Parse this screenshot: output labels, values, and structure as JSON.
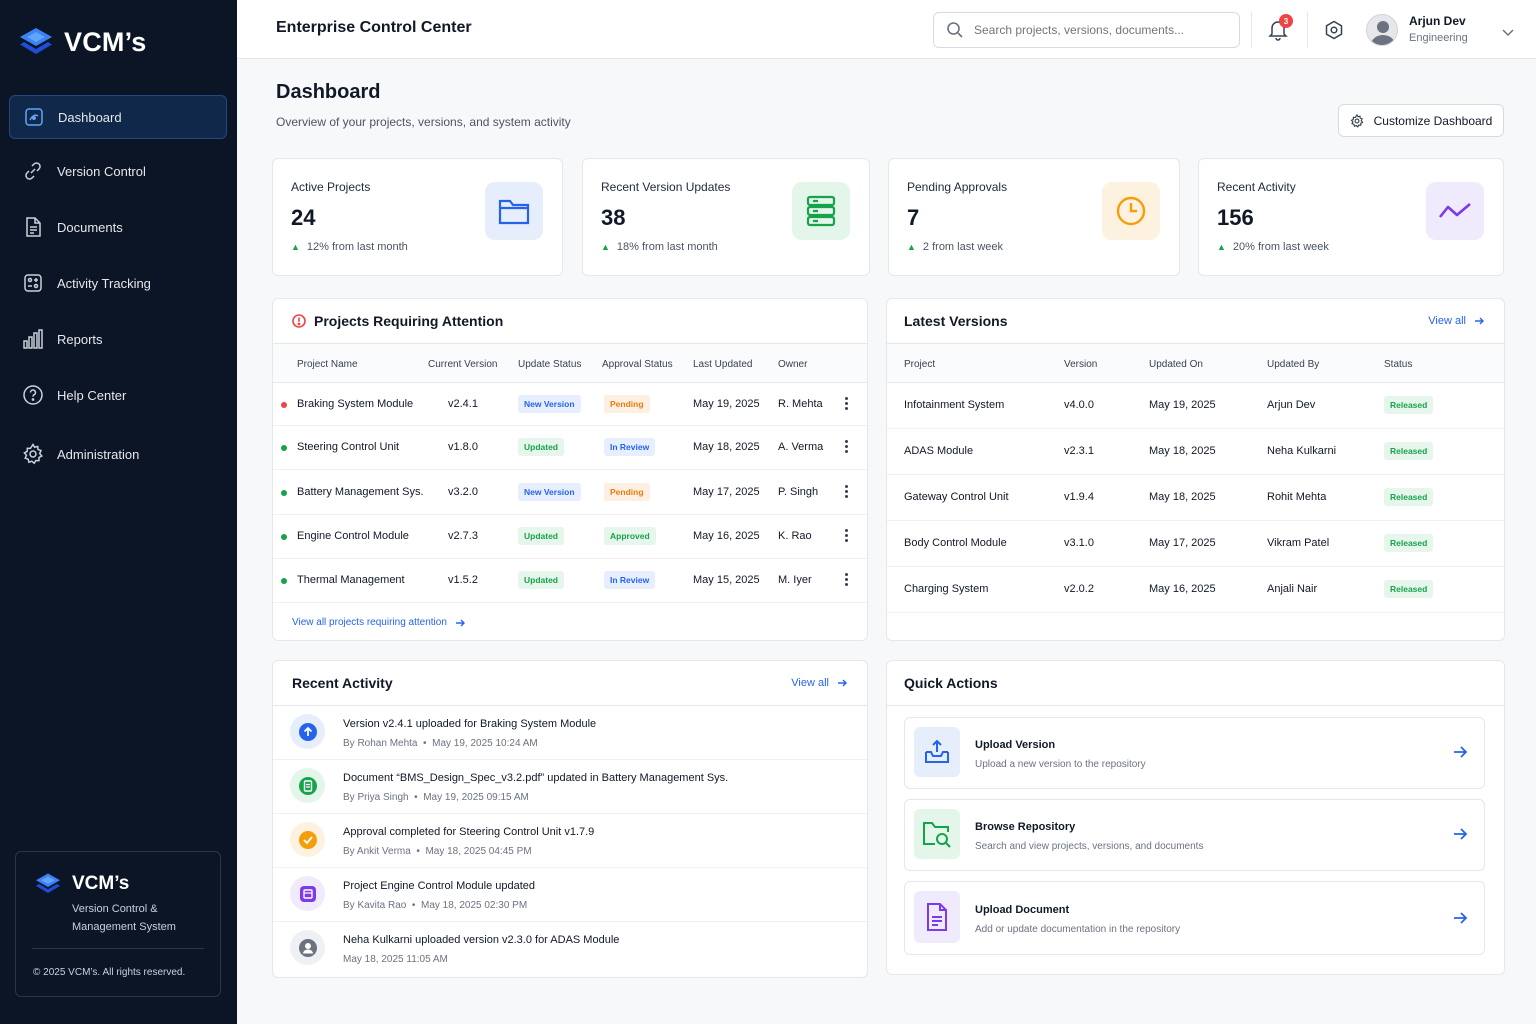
{
  "brand": {
    "name": "VCM’s",
    "tagline": "Version Control & Management System",
    "copyright": "© 2025 VCM’s. All rights reserved."
  },
  "nav": [
    {
      "label": "Dashboard",
      "icon": "dashboard-icon",
      "active": true
    },
    {
      "label": "Version Control",
      "icon": "link-icon"
    },
    {
      "label": "Documents",
      "icon": "document-icon"
    },
    {
      "label": "Activity Tracking",
      "icon": "activity-icon"
    },
    {
      "label": "Reports",
      "icon": "bar-chart-icon"
    },
    {
      "label": "Help Center",
      "icon": "help-icon"
    },
    {
      "label": "Administration",
      "icon": "gear-icon"
    }
  ],
  "topbar": {
    "title": "Enterprise Control Center",
    "search_placeholder": "Search projects, versions, documents...",
    "notification_count": "3",
    "user_name": "Arjun Dev",
    "user_role": "Engineering"
  },
  "page": {
    "title": "Dashboard",
    "subtitle": "Overview of your projects, versions, and system activity",
    "customize_label": "Customize Dashboard"
  },
  "stats": [
    {
      "label": "Active Projects",
      "value": "24",
      "change": "12% from last month",
      "icon": "folder-icon",
      "color": "#2563eb",
      "bg": "#e6eefc"
    },
    {
      "label": "Recent Version Updates",
      "value": "38",
      "change": "18% from last month",
      "icon": "server-icon",
      "color": "#16a34a",
      "bg": "#e4f5ea"
    },
    {
      "label": "Pending Approvals",
      "value": "7",
      "change": "2 from last week",
      "icon": "clock-icon",
      "color": "#f59e0b",
      "bg": "#fdf1e0"
    },
    {
      "label": "Recent Activity",
      "value": "156",
      "change": "20% from last week",
      "icon": "trend-icon",
      "color": "#7c3aed",
      "bg": "#efeafc"
    }
  ],
  "attention": {
    "title": "Projects Requiring Attention",
    "columns": [
      "Project Name",
      "Current Version",
      "Update Status",
      "Approval Status",
      "Last Updated",
      "Owner"
    ],
    "rows": [
      {
        "name": "Braking System Module",
        "version": "v2.4.1",
        "update": "New Version",
        "approval": "Pending",
        "date": "May 19, 2025",
        "owner": "R. Mehta",
        "dot": "#ef4444"
      },
      {
        "name": "Steering Control Unit",
        "version": "v1.8.0",
        "update": "Updated",
        "approval": "In Review",
        "date": "May 18, 2025",
        "owner": "A. Verma",
        "dot": "#16a34a"
      },
      {
        "name": "Battery Management Sys.",
        "version": "v3.2.0",
        "update": "New Version",
        "approval": "Pending",
        "date": "May 17, 2025",
        "owner": "P. Singh",
        "dot": "#16a34a"
      },
      {
        "name": "Engine Control Module",
        "version": "v2.7.3",
        "update": "Updated",
        "approval": "Approved",
        "date": "May 16, 2025",
        "owner": "K. Rao",
        "dot": "#16a34a"
      },
      {
        "name": "Thermal Management",
        "version": "v1.5.2",
        "update": "Updated",
        "approval": "In Review",
        "date": "May 15, 2025",
        "owner": "M. Iyer",
        "dot": "#16a34a"
      }
    ],
    "view_all": "View all projects requiring attention"
  },
  "versions": {
    "title": "Latest Versions",
    "view_all": "View all",
    "columns": [
      "Project",
      "Version",
      "Updated On",
      "Updated By",
      "Status"
    ],
    "rows": [
      {
        "project": "Infotainment System",
        "version": "v4.0.0",
        "date": "May 19, 2025",
        "by": "Arjun Dev",
        "status": "Released"
      },
      {
        "project": "ADAS Module",
        "version": "v2.3.1",
        "date": "May 18, 2025",
        "by": "Neha Kulkarni",
        "status": "Released"
      },
      {
        "project": "Gateway Control Unit",
        "version": "v1.9.4",
        "date": "May 18, 2025",
        "by": "Rohit Mehta",
        "status": "Released"
      },
      {
        "project": "Body Control Module",
        "version": "v3.1.0",
        "date": "May 17, 2025",
        "by": "Vikram Patel",
        "status": "Released"
      },
      {
        "project": "Charging System",
        "version": "v2.0.2",
        "date": "May 16, 2025",
        "by": "Anjali Nair",
        "status": "Released"
      }
    ]
  },
  "activity": {
    "title": "Recent Activity",
    "view_all": "View all",
    "items": [
      {
        "text": "Version v2.4.1 uploaded for Braking System Module",
        "by": "By Rohan Mehta",
        "time": "May 19, 2025 10:24 AM",
        "icon": "upload-icon",
        "color": "#2563eb",
        "bg": "#e6eefc"
      },
      {
        "text": "Document “BMS_Design_Spec_v3.2.pdf” updated in Battery Management Sys.",
        "by": "By Priya Singh",
        "time": "May 19, 2025 09:15 AM",
        "icon": "document-icon",
        "color": "#16a34a",
        "bg": "#e4f5ea"
      },
      {
        "text": "Approval completed for Steering Control Unit v1.7.9",
        "by": "By Ankit Verma",
        "time": "May 18, 2025 04:45 PM",
        "icon": "check-icon",
        "color": "#f59e0b",
        "bg": "#fdf1e0"
      },
      {
        "text": "Project Engine Control Module updated",
        "by": "By Kavita Rao",
        "time": "May 18, 2025 02:30 PM",
        "icon": "project-icon",
        "color": "#7c3aed",
        "bg": "#efeafc"
      },
      {
        "text": "Neha Kulkarni uploaded version v2.3.0 for ADAS Module",
        "by": "",
        "time": "May 18, 2025 11:05 AM",
        "icon": "user-icon",
        "color": "#6b7280",
        "bg": "#eef0f3"
      }
    ]
  },
  "quick_actions": {
    "title": "Quick Actions",
    "items": [
      {
        "title": "Upload Version",
        "desc": "Upload a new version to the repository",
        "icon": "upload-box-icon",
        "color": "#2563eb",
        "bg": "#e6eefc"
      },
      {
        "title": "Browse Repository",
        "desc": "Search and view projects, versions, and documents",
        "icon": "folder-search-icon",
        "color": "#16a34a",
        "bg": "#e4f5ea"
      },
      {
        "title": "Upload Document",
        "desc": "Add or update documentation in the repository",
        "icon": "document-icon",
        "color": "#7c3aed",
        "bg": "#efeafc"
      }
    ]
  }
}
